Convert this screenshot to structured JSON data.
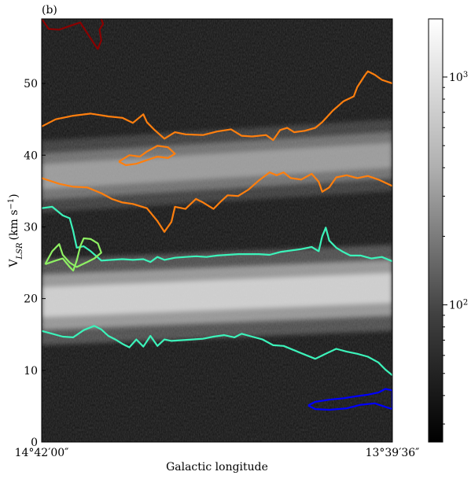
{
  "panel_label": "(b)",
  "chart_data": {
    "type": "heatmap",
    "title": "",
    "xlabel": "Galactic longitude",
    "ylabel": "V",
    "ylabel_sub": "LSR",
    "ylabel_unit": "(km s",
    "ylabel_sup": "−1",
    "ylabel_close": ")",
    "x_tick_labels": {
      "left": "14°42′00″",
      "right": "13°39′36″"
    },
    "ylim": [
      0,
      59
    ],
    "y_ticks": [
      0,
      10,
      20,
      30,
      40,
      50
    ],
    "grid": false,
    "colormap": "gray",
    "colorbar": {
      "scale": "log",
      "range": [
        25,
        1800
      ],
      "ticks": [
        {
          "value": 100,
          "base": "10",
          "exp": "2"
        },
        {
          "value": 1000,
          "base": "10",
          "exp": "3"
        }
      ]
    },
    "emission_bands": [
      {
        "v_center_left": 19.5,
        "v_center_right": 21.5,
        "width": 6,
        "peak": 1.0
      },
      {
        "v_center_left": 37,
        "v_center_right": 40,
        "width": 5,
        "peak": 0.55
      }
    ],
    "contours": [
      {
        "color": "#8b0000",
        "points": [
          [
            0.0,
            59
          ],
          [
            0.02,
            57.6
          ],
          [
            0.05,
            57.5
          ],
          [
            0.08,
            58
          ],
          [
            0.11,
            58.5
          ],
          [
            0.13,
            57
          ],
          [
            0.15,
            55.5
          ],
          [
            0.16,
            54.8
          ],
          [
            0.17,
            56
          ],
          [
            0.165,
            57.5
          ],
          [
            0.175,
            58.3
          ],
          [
            0.17,
            59
          ]
        ]
      },
      {
        "color": "#ff7f0e",
        "points": [
          [
            0.0,
            44
          ],
          [
            0.04,
            45
          ],
          [
            0.09,
            45.5
          ],
          [
            0.14,
            45.8
          ],
          [
            0.19,
            45.4
          ],
          [
            0.23,
            45.2
          ],
          [
            0.26,
            44.5
          ],
          [
            0.29,
            45.7
          ],
          [
            0.3,
            44.6
          ],
          [
            0.32,
            43.6
          ],
          [
            0.35,
            42.3
          ],
          [
            0.38,
            43.2
          ],
          [
            0.41,
            42.9
          ],
          [
            0.46,
            42.8
          ],
          [
            0.5,
            43.3
          ],
          [
            0.54,
            43.6
          ],
          [
            0.57,
            42.7
          ],
          [
            0.6,
            42.6
          ],
          [
            0.64,
            42.8
          ],
          [
            0.66,
            42.1
          ],
          [
            0.68,
            43.5
          ],
          [
            0.7,
            43.8
          ],
          [
            0.72,
            43.2
          ],
          [
            0.75,
            43.4
          ],
          [
            0.78,
            43.8
          ],
          [
            0.8,
            44.6
          ],
          [
            0.83,
            46.2
          ],
          [
            0.86,
            47.5
          ],
          [
            0.89,
            48.2
          ],
          [
            0.9,
            49.5
          ],
          [
            0.92,
            51
          ],
          [
            0.93,
            51.7
          ],
          [
            0.95,
            51.2
          ],
          [
            0.97,
            50.5
          ],
          [
            1.0,
            50
          ]
        ]
      },
      {
        "color": "#ff7f0e",
        "points": [
          [
            0.0,
            36.8
          ],
          [
            0.05,
            36
          ],
          [
            0.09,
            35.6
          ],
          [
            0.13,
            35.5
          ],
          [
            0.17,
            34.7
          ],
          [
            0.2,
            33.9
          ],
          [
            0.23,
            33.4
          ],
          [
            0.26,
            33.2
          ],
          [
            0.3,
            32.6
          ],
          [
            0.33,
            30.8
          ],
          [
            0.35,
            29.3
          ],
          [
            0.37,
            30.7
          ],
          [
            0.38,
            32.8
          ],
          [
            0.41,
            32.5
          ],
          [
            0.44,
            33.9
          ],
          [
            0.46,
            33.4
          ],
          [
            0.49,
            32.5
          ],
          [
            0.51,
            33.5
          ],
          [
            0.53,
            34.4
          ],
          [
            0.56,
            34.3
          ],
          [
            0.59,
            35.2
          ],
          [
            0.62,
            36.5
          ],
          [
            0.65,
            37.6
          ],
          [
            0.67,
            37.2
          ],
          [
            0.69,
            37.6
          ],
          [
            0.71,
            36.8
          ],
          [
            0.74,
            36.6
          ],
          [
            0.77,
            37.4
          ],
          [
            0.79,
            36.3
          ],
          [
            0.8,
            34.9
          ],
          [
            0.82,
            35.5
          ],
          [
            0.84,
            36.9
          ],
          [
            0.87,
            37.2
          ],
          [
            0.9,
            36.8
          ],
          [
            0.93,
            37.1
          ],
          [
            0.96,
            36.6
          ],
          [
            1.0,
            35.7
          ]
        ]
      },
      {
        "color": "#ff7f0e",
        "points": [
          [
            0.22,
            39.1
          ],
          [
            0.25,
            40
          ],
          [
            0.28,
            39.8
          ],
          [
            0.3,
            40.5
          ],
          [
            0.33,
            41.3
          ],
          [
            0.36,
            41.1
          ],
          [
            0.38,
            40.2
          ],
          [
            0.36,
            39.6
          ],
          [
            0.33,
            39.8
          ],
          [
            0.3,
            39.3
          ],
          [
            0.27,
            38.8
          ],
          [
            0.24,
            38.6
          ],
          [
            0.22,
            39.1
          ]
        ]
      },
      {
        "color": "#3cf3ba",
        "points": [
          [
            0.0,
            32.6
          ],
          [
            0.03,
            32.8
          ],
          [
            0.06,
            31.6
          ],
          [
            0.08,
            31.2
          ],
          [
            0.09,
            29.4
          ],
          [
            0.1,
            27.1
          ],
          [
            0.12,
            27.3
          ],
          [
            0.14,
            26.6
          ],
          [
            0.17,
            25.3
          ],
          [
            0.2,
            25.4
          ],
          [
            0.23,
            25.5
          ],
          [
            0.26,
            25.4
          ],
          [
            0.29,
            25.5
          ],
          [
            0.31,
            25.1
          ],
          [
            0.33,
            25.8
          ],
          [
            0.35,
            25.4
          ],
          [
            0.38,
            25.7
          ],
          [
            0.41,
            25.8
          ],
          [
            0.44,
            25.9
          ],
          [
            0.47,
            25.8
          ],
          [
            0.5,
            26
          ],
          [
            0.53,
            26.1
          ],
          [
            0.56,
            26.2
          ],
          [
            0.59,
            26.2
          ],
          [
            0.62,
            26.2
          ],
          [
            0.65,
            26.1
          ],
          [
            0.68,
            26.5
          ],
          [
            0.71,
            26.7
          ],
          [
            0.74,
            26.9
          ],
          [
            0.77,
            27.2
          ],
          [
            0.79,
            26.6
          ],
          [
            0.8,
            28.7
          ],
          [
            0.81,
            29.9
          ],
          [
            0.82,
            28.1
          ],
          [
            0.84,
            27.1
          ],
          [
            0.86,
            26.5
          ],
          [
            0.88,
            26
          ],
          [
            0.91,
            26
          ],
          [
            0.94,
            25.6
          ],
          [
            0.97,
            25.8
          ],
          [
            1.0,
            25.2
          ]
        ]
      },
      {
        "color": "#3cf3ba",
        "points": [
          [
            0.0,
            15.5
          ],
          [
            0.03,
            15.1
          ],
          [
            0.06,
            14.7
          ],
          [
            0.09,
            14.6
          ],
          [
            0.12,
            15.6
          ],
          [
            0.15,
            16.2
          ],
          [
            0.17,
            15.7
          ],
          [
            0.19,
            14.8
          ],
          [
            0.21,
            14.3
          ],
          [
            0.23,
            13.7
          ],
          [
            0.25,
            13.2
          ],
          [
            0.27,
            14.3
          ],
          [
            0.29,
            13.3
          ],
          [
            0.31,
            14.8
          ],
          [
            0.33,
            13.4
          ],
          [
            0.35,
            14.3
          ],
          [
            0.37,
            14.1
          ],
          [
            0.4,
            14.2
          ],
          [
            0.43,
            14.3
          ],
          [
            0.46,
            14.4
          ],
          [
            0.49,
            14.7
          ],
          [
            0.52,
            14.9
          ],
          [
            0.55,
            14.6
          ],
          [
            0.57,
            15.1
          ],
          [
            0.6,
            14.7
          ],
          [
            0.63,
            14.3
          ],
          [
            0.66,
            13.5
          ],
          [
            0.69,
            13.4
          ],
          [
            0.72,
            12.8
          ],
          [
            0.75,
            12.2
          ],
          [
            0.78,
            11.6
          ],
          [
            0.81,
            12.3
          ],
          [
            0.84,
            13
          ],
          [
            0.87,
            12.6
          ],
          [
            0.9,
            12.3
          ],
          [
            0.93,
            11.9
          ],
          [
            0.96,
            11.1
          ],
          [
            0.98,
            10.1
          ],
          [
            1.0,
            9.3
          ]
        ]
      },
      {
        "color": "#8ef063",
        "points": [
          [
            0.01,
            24.8
          ],
          [
            0.04,
            25.3
          ],
          [
            0.06,
            25.6
          ],
          [
            0.08,
            24.4
          ],
          [
            0.09,
            23.9
          ],
          [
            0.1,
            25.3
          ],
          [
            0.11,
            27.3
          ],
          [
            0.12,
            28.4
          ],
          [
            0.14,
            28.3
          ],
          [
            0.16,
            27.7
          ],
          [
            0.17,
            26.4
          ],
          [
            0.15,
            25.6
          ],
          [
            0.13,
            25.1
          ],
          [
            0.1,
            24.4
          ],
          [
            0.08,
            25
          ],
          [
            0.06,
            26.1
          ],
          [
            0.05,
            27.6
          ],
          [
            0.03,
            26.6
          ],
          [
            0.01,
            24.8
          ]
        ]
      },
      {
        "color": "#0000ff",
        "points": [
          [
            0.76,
            5.1
          ],
          [
            0.78,
            5.6
          ],
          [
            0.82,
            5.9
          ],
          [
            0.86,
            6.1
          ],
          [
            0.9,
            6.4
          ],
          [
            0.93,
            6.6
          ],
          [
            0.96,
            6.9
          ],
          [
            0.98,
            7.4
          ],
          [
            1.0,
            7.2
          ],
          [
            1.0,
            4.6
          ],
          [
            0.98,
            4.9
          ],
          [
            0.95,
            5.4
          ],
          [
            0.91,
            5.2
          ],
          [
            0.87,
            4.7
          ],
          [
            0.82,
            4.5
          ],
          [
            0.78,
            4.6
          ],
          [
            0.76,
            5.1
          ]
        ]
      }
    ]
  }
}
